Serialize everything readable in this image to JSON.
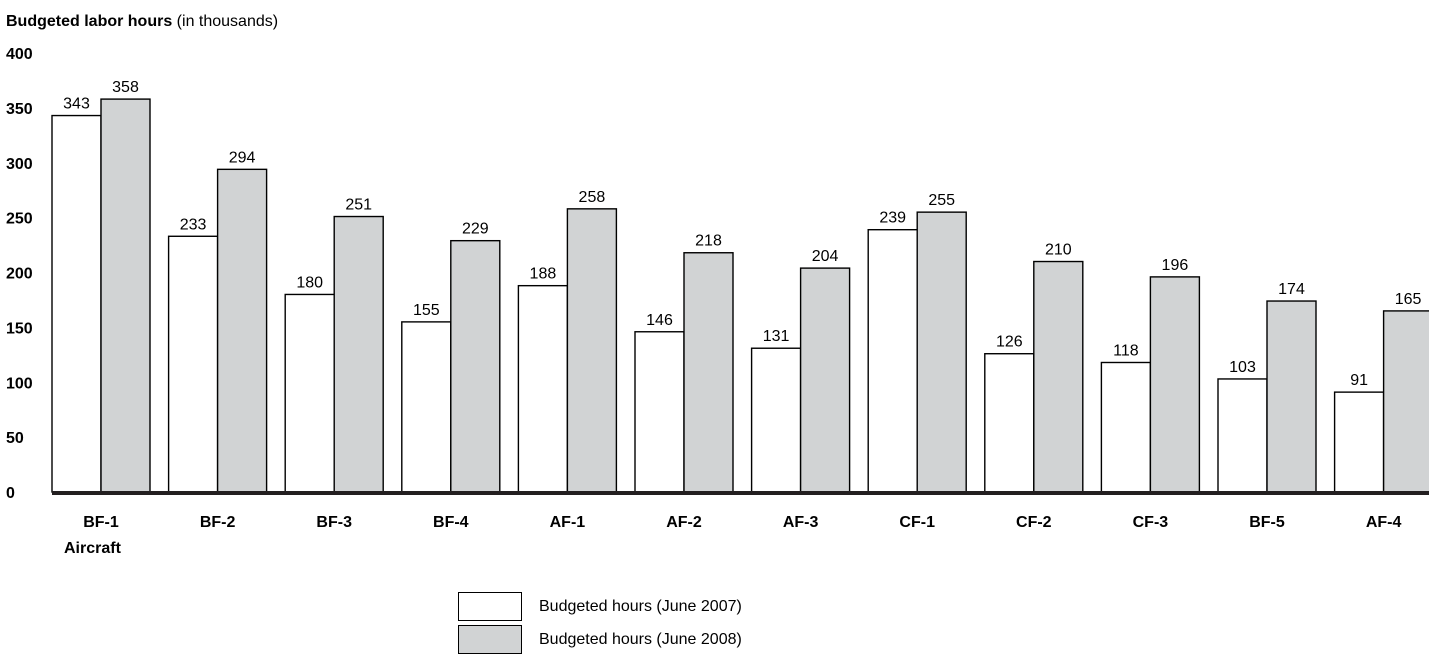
{
  "chart_data": {
    "type": "bar",
    "title_bold": "Budgeted labor hours",
    "title_rest": " (in thousands)",
    "xlabel": "Aircraft",
    "ylim": [
      0,
      400
    ],
    "yticks": [
      "0",
      "50",
      "100",
      "150",
      "200",
      "250",
      "300",
      "350",
      "400"
    ],
    "categories": [
      "BF-1",
      "BF-2",
      "BF-3",
      "BF-4",
      "AF-1",
      "AF-2",
      "AF-3",
      "CF-1",
      "CF-2",
      "CF-3",
      "BF-5",
      "AF-4"
    ],
    "series": [
      {
        "name": "Budgeted hours (June 2007)",
        "color": "#ffffff",
        "values": [
          343,
          233,
          180,
          155,
          188,
          146,
          131,
          239,
          126,
          118,
          103,
          91
        ]
      },
      {
        "name": "Budgeted hours (June 2008)",
        "color": "#d1d3d4",
        "values": [
          358,
          294,
          251,
          229,
          258,
          218,
          204,
          255,
          210,
          196,
          174,
          165
        ]
      }
    ],
    "grid": false,
    "legend_position": "bottom-center"
  }
}
